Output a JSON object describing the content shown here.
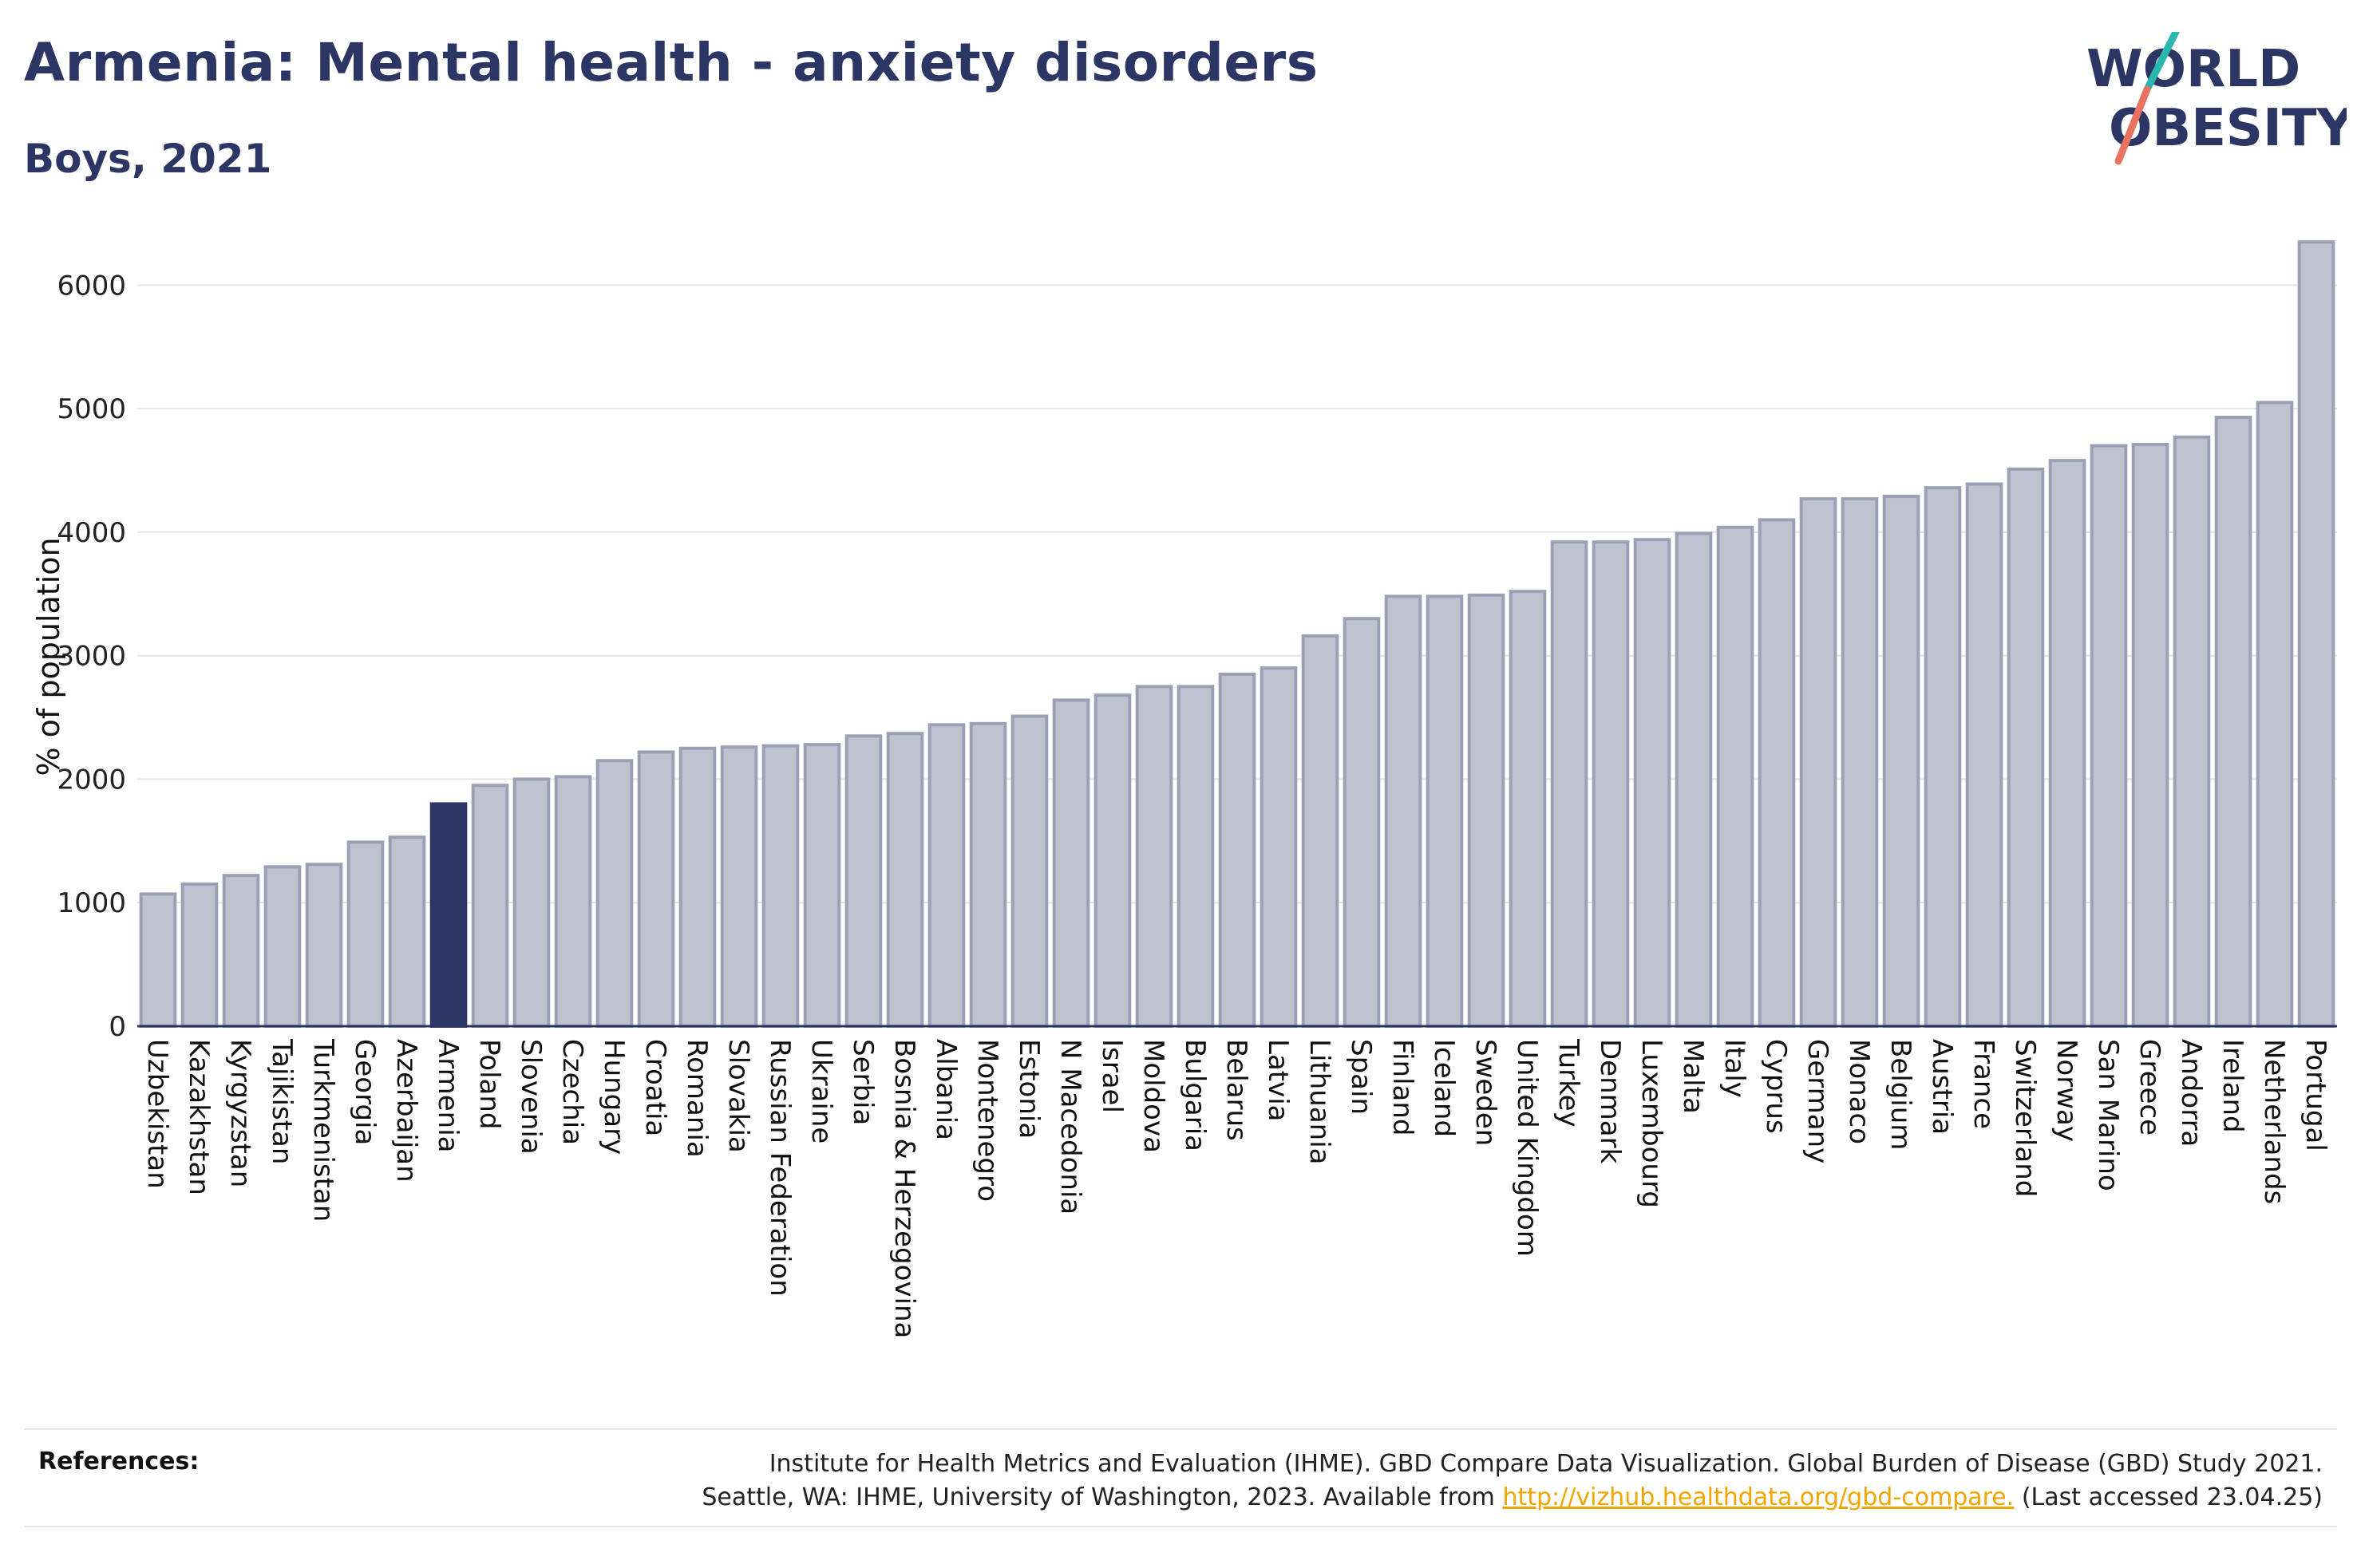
{
  "title": "Armenia: Mental health - anxiety disorders",
  "subtitle": "Boys, 2021",
  "logo": {
    "line1": "WORLD",
    "line2": "OBESITY",
    "accent_teal": "#2bb6b0",
    "accent_coral": "#e8735f",
    "text_color": "#2b3664"
  },
  "references": {
    "label": "References:",
    "line1": "Institute for Health Metrics and Evaluation (IHME). GBD Compare Data Visualization. Global Burden of Disease (GBD) Study 2021.",
    "line2_pre": "Seattle, WA: IHME, University of Washington, 2023. Available from",
    "link": "http://vizhub.healthdata.org/gbd-compare.",
    "line2_post": "(Last accessed 23.04.25)"
  },
  "colors": {
    "bar": "#bfc3d0",
    "bar_stroke": "#9aa0b6",
    "highlight": "#2b3664",
    "grid": "#e6e6e6"
  },
  "chart_data": {
    "type": "bar",
    "ylabel": "% of population",
    "xlabel": "",
    "ylim": [
      0,
      6500
    ],
    "yticks": [
      0,
      1000,
      2000,
      3000,
      4000,
      5000,
      6000
    ],
    "grid": true,
    "highlight": "Armenia",
    "categories": [
      "Uzbekistan",
      "Kazakhstan",
      "Kyrgyzstan",
      "Tajikistan",
      "Turkmenistan",
      "Georgia",
      "Azerbaijan",
      "Armenia",
      "Poland",
      "Slovenia",
      "Czechia",
      "Hungary",
      "Croatia",
      "Romania",
      "Slovakia",
      "Russian Federation",
      "Ukraine",
      "Serbia",
      "Bosnia & Herzegovina",
      "Albania",
      "Montenegro",
      "Estonia",
      "N Macedonia",
      "Israel",
      "Moldova",
      "Bulgaria",
      "Belarus",
      "Latvia",
      "Lithuania",
      "Spain",
      "Finland",
      "Iceland",
      "Sweden",
      "United Kingdom",
      "Turkey",
      "Denmark",
      "Luxembourg",
      "Malta",
      "Italy",
      "Cyprus",
      "Germany",
      "Monaco",
      "Belgium",
      "Austria",
      "France",
      "Switzerland",
      "Norway",
      "San Marino",
      "Greece",
      "Andorra",
      "Ireland",
      "Netherlands",
      "Portugal"
    ],
    "values": [
      1070,
      1150,
      1220,
      1290,
      1310,
      1490,
      1530,
      1800,
      1950,
      2000,
      2020,
      2150,
      2220,
      2250,
      2260,
      2270,
      2280,
      2350,
      2370,
      2440,
      2450,
      2510,
      2640,
      2680,
      2750,
      2750,
      2850,
      2900,
      3160,
      3300,
      3480,
      3480,
      3490,
      3520,
      3920,
      3920,
      3940,
      3990,
      4040,
      4100,
      4270,
      4270,
      4290,
      4360,
      4390,
      4510,
      4580,
      4700,
      4710,
      4770,
      4930,
      5050,
      6350
    ]
  }
}
